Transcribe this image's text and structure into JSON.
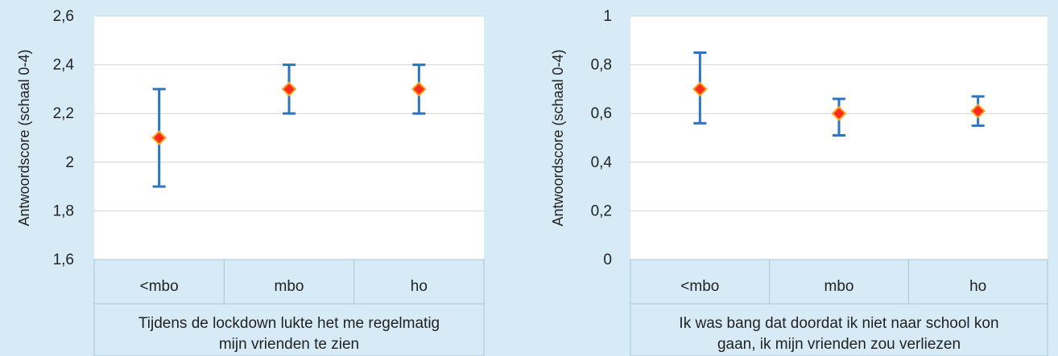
{
  "chart_data": [
    {
      "type": "scatter",
      "title": "",
      "ylabel": "Antwoordscore (schaal 0-4)",
      "xlabel": "Tijdens de lockdown lukte het me regelmatig mijn vrienden te zien",
      "xlabel_lines": [
        "Tijdens de lockdown lukte het me regelmatig",
        "mijn vrienden te zien"
      ],
      "categories": [
        "<mbo",
        "mbo",
        "ho"
      ],
      "values": [
        2.1,
        2.3,
        2.3
      ],
      "error_low": [
        1.9,
        2.2,
        2.2
      ],
      "error_high": [
        2.3,
        2.4,
        2.4
      ],
      "ylim": [
        1.6,
        2.6
      ],
      "yticks": [
        1.6,
        1.8,
        2.0,
        2.2,
        2.4,
        2.6
      ],
      "ytick_labels": [
        "1,6",
        "1,8",
        "2",
        "2,2",
        "2,4",
        "2,6"
      ],
      "grid": true,
      "marker_color": "#ff2a1a",
      "marker_edge_color": "#f5a623",
      "errorbar_color": "#2e75c0"
    },
    {
      "type": "scatter",
      "title": "",
      "ylabel": "Antwoordscore (schaal 0-4)",
      "xlabel": "Ik was bang dat doordat ik niet naar school kon gaan, ik mijn vrienden zou verliezen",
      "xlabel_lines": [
        "Ik was bang dat doordat ik niet naar school kon",
        "gaan, ik mijn vrienden zou verliezen"
      ],
      "categories": [
        "<mbo",
        "mbo",
        "ho"
      ],
      "values": [
        0.7,
        0.6,
        0.61
      ],
      "error_low": [
        0.56,
        0.51,
        0.55
      ],
      "error_high": [
        0.85,
        0.66,
        0.67
      ],
      "ylim": [
        0,
        1
      ],
      "yticks": [
        0,
        0.2,
        0.4,
        0.6,
        0.8,
        1.0
      ],
      "ytick_labels": [
        "0",
        "0,2",
        "0,4",
        "0,6",
        "0,8",
        "1"
      ],
      "grid": true,
      "marker_color": "#ff2a1a",
      "marker_edge_color": "#f5a623",
      "errorbar_color": "#2e75c0"
    }
  ]
}
